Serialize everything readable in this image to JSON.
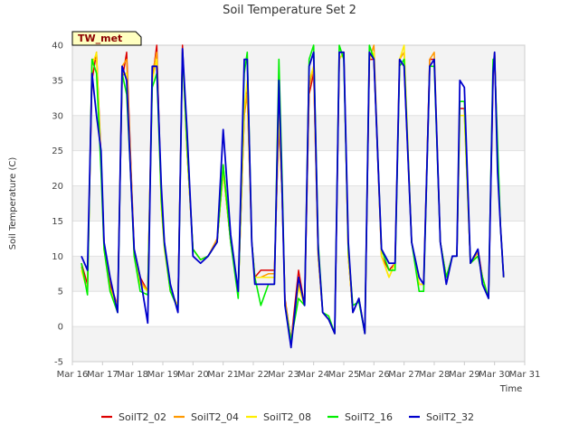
{
  "chart_data": {
    "type": "line",
    "title": "Soil Temperature Set 2",
    "xlabel": "Time",
    "ylabel": "Soil Temperature (C)",
    "ylim": [
      -5,
      40
    ],
    "y_ticks": [
      -5,
      0,
      5,
      10,
      15,
      20,
      25,
      30,
      35,
      40
    ],
    "x_ticks": [
      "Mar 16",
      "Mar 17",
      "Mar 18",
      "Mar 19",
      "Mar 20",
      "Mar 21",
      "Mar 22",
      "Mar 23",
      "Mar 24",
      "Mar 25",
      "Mar 26",
      "Mar 27",
      "Mar 28",
      "Mar 29",
      "Mar 30",
      "Mar 31"
    ],
    "xlim_days": [
      16,
      31
    ],
    "grid": "horizontal alternating bands",
    "legend_position": "bottom",
    "badge_label": "TW_met",
    "series": [
      {
        "name": "SoilT2_02",
        "color": "#dd0000",
        "stroke_width": 1.5,
        "point_days": [
          16.3,
          16.5,
          16.65,
          16.8,
          16.95,
          17.05,
          17.25,
          17.5,
          17.65,
          17.8,
          17.95,
          18.05,
          18.25,
          18.5,
          18.65,
          18.8,
          18.95,
          19.05,
          19.25,
          19.5,
          19.65,
          19.8,
          20.0,
          20.25,
          20.5,
          20.8,
          21.0,
          21.25,
          21.5,
          21.7,
          21.8,
          21.95,
          22.05,
          22.25,
          22.5,
          22.7,
          22.85,
          22.95,
          23.05,
          23.25,
          23.5,
          23.7,
          23.85,
          24.0,
          24.15,
          24.3,
          24.5,
          24.7,
          24.85,
          25.0,
          25.15,
          25.3,
          25.5,
          25.7,
          25.85,
          26.0,
          26.25,
          26.5,
          26.7,
          26.85,
          27.0,
          27.25,
          27.5,
          27.65,
          27.85,
          28.0,
          28.2,
          28.4,
          28.6,
          28.75,
          28.85,
          29.0,
          29.2,
          29.45,
          29.6,
          29.8,
          29.95,
          30.0,
          30.1,
          30.2,
          30.3
        ],
        "values": [
          9,
          6,
          35,
          39,
          24,
          12,
          6,
          3,
          35,
          39,
          22,
          11,
          7,
          5,
          35,
          40,
          18,
          12,
          5,
          3,
          40,
          25,
          11,
          9.5,
          10,
          12,
          22,
          12,
          5,
          30,
          34,
          12,
          7,
          8,
          8,
          8,
          29,
          19,
          4,
          -2,
          8,
          3,
          33,
          36,
          10,
          2,
          1,
          -1,
          38,
          39,
          10,
          2,
          4,
          -1,
          38,
          38,
          10,
          8,
          9,
          38,
          37,
          12,
          6,
          6,
          38,
          38,
          12,
          7,
          10,
          10,
          31,
          31,
          9,
          11,
          7,
          4,
          35,
          39,
          24,
          14,
          7
        ]
      },
      {
        "name": "SoilT2_04",
        "color": "#ff9900",
        "stroke_width": 1.5,
        "point_days": [
          16.3,
          16.5,
          16.65,
          16.8,
          16.95,
          17.05,
          17.25,
          17.5,
          17.65,
          17.8,
          17.95,
          18.05,
          18.25,
          18.5,
          18.65,
          18.8,
          18.95,
          19.05,
          19.25,
          19.5,
          19.65,
          19.8,
          20.0,
          20.25,
          20.5,
          20.8,
          21.0,
          21.25,
          21.5,
          21.7,
          21.8,
          21.95,
          22.05,
          22.25,
          22.5,
          22.7,
          22.85,
          22.95,
          23.05,
          23.25,
          23.5,
          23.7,
          23.85,
          24.0,
          24.15,
          24.3,
          24.5,
          24.7,
          24.85,
          25.0,
          25.15,
          25.3,
          25.5,
          25.7,
          25.85,
          26.0,
          26.25,
          26.5,
          26.7,
          26.85,
          27.0,
          27.25,
          27.5,
          27.65,
          27.85,
          28.0,
          28.2,
          28.4,
          28.6,
          28.75,
          28.85,
          29.0,
          29.2,
          29.45,
          29.6,
          29.8,
          29.95,
          30.0,
          30.1,
          30.2,
          30.3
        ],
        "values": [
          8.5,
          5,
          38,
          38,
          23,
          11.5,
          5.5,
          3,
          37,
          38,
          21,
          10.5,
          6.5,
          5,
          36,
          39,
          17,
          11.5,
          5,
          3,
          39,
          25,
          11,
          9.5,
          10,
          12.5,
          23,
          12,
          5,
          30,
          33,
          12,
          7,
          7,
          7.5,
          7.5,
          30,
          19,
          3.5,
          -2,
          6,
          3,
          34,
          37,
          10,
          2,
          1,
          -1,
          38,
          39,
          10,
          2,
          4,
          -1,
          38,
          40,
          10,
          7,
          9,
          38,
          39,
          12,
          6,
          6,
          38,
          39,
          12,
          7,
          10,
          10,
          30,
          30,
          9,
          10.5,
          7,
          4,
          36,
          39,
          24,
          14,
          7
        ]
      },
      {
        "name": "SoilT2_08",
        "color": "#ffee00",
        "stroke_width": 1.5,
        "point_days": [
          16.3,
          16.5,
          16.65,
          16.8,
          16.95,
          17.05,
          17.25,
          17.5,
          17.65,
          17.8,
          17.95,
          18.05,
          18.25,
          18.5,
          18.65,
          18.8,
          18.95,
          19.05,
          19.25,
          19.5,
          19.65,
          19.8,
          20.0,
          20.25,
          20.5,
          20.8,
          21.0,
          21.25,
          21.5,
          21.7,
          21.8,
          21.95,
          22.05,
          22.25,
          22.5,
          22.7,
          22.85,
          22.95,
          23.05,
          23.25,
          23.5,
          23.7,
          23.85,
          24.0,
          24.15,
          24.3,
          24.5,
          24.7,
          24.85,
          25.0,
          25.15,
          25.3,
          25.5,
          25.7,
          25.85,
          26.0,
          26.25,
          26.5,
          26.7,
          26.85,
          27.0,
          27.25,
          27.5,
          27.65,
          27.85,
          28.0,
          28.2,
          28.4,
          28.6,
          28.75,
          28.85,
          29.0,
          29.2,
          29.45,
          29.6,
          29.8,
          29.95,
          30.0,
          30.1,
          30.2,
          30.3
        ],
        "values": [
          8,
          5,
          37,
          39,
          23,
          11,
          5,
          3,
          36,
          36,
          21,
          10,
          6,
          5,
          35,
          38,
          17,
          11,
          5,
          3,
          39,
          25,
          11,
          9.5,
          10,
          12,
          22,
          12,
          5,
          31,
          35,
          12,
          7,
          7,
          7,
          7,
          31,
          19,
          3.5,
          -2,
          5.5,
          3,
          35,
          37,
          10,
          2,
          1,
          -1,
          38,
          39,
          10,
          2,
          4,
          -1,
          38,
          39,
          10,
          7,
          9,
          38,
          40,
          12,
          6,
          6,
          37,
          38,
          12,
          7,
          10,
          10,
          30,
          30,
          9,
          10,
          7,
          4,
          36,
          39,
          24,
          14,
          7
        ]
      },
      {
        "name": "SoilT2_16",
        "color": "#00ee00",
        "stroke_width": 1.6,
        "point_days": [
          16.3,
          16.5,
          16.65,
          16.8,
          16.95,
          17.05,
          17.25,
          17.5,
          17.65,
          17.8,
          17.95,
          18.05,
          18.25,
          18.5,
          18.65,
          18.8,
          18.95,
          19.05,
          19.25,
          19.5,
          19.65,
          19.8,
          20.0,
          20.25,
          20.5,
          20.8,
          21.0,
          21.25,
          21.5,
          21.7,
          21.8,
          21.95,
          22.05,
          22.25,
          22.5,
          22.7,
          22.85,
          22.95,
          23.05,
          23.25,
          23.5,
          23.7,
          23.85,
          24.0,
          24.15,
          24.3,
          24.5,
          24.7,
          24.85,
          25.0,
          25.15,
          25.3,
          25.5,
          25.7,
          25.85,
          26.0,
          26.25,
          26.5,
          26.7,
          26.85,
          27.0,
          27.25,
          27.5,
          27.65,
          27.85,
          28.0,
          28.2,
          28.4,
          28.6,
          28.75,
          28.85,
          29.0,
          29.2,
          29.45,
          29.6,
          29.8,
          29.95,
          30.0,
          30.1,
          30.2,
          30.3
        ],
        "values": [
          9,
          4.5,
          38,
          36,
          22,
          11,
          5,
          2,
          36,
          33,
          20,
          10,
          5,
          4.5,
          34,
          36,
          18,
          11.5,
          5,
          2.5,
          39,
          26,
          11,
          9.5,
          10,
          12,
          23,
          12,
          4,
          36,
          39,
          12,
          7,
          3,
          6,
          6,
          38,
          22,
          3,
          -2,
          4,
          3,
          38,
          40,
          12,
          2,
          1.5,
          -1,
          40,
          38,
          11,
          3,
          3.5,
          -1,
          40,
          38,
          11,
          8,
          8,
          37,
          38,
          12,
          5,
          5,
          37,
          37,
          12,
          7,
          10,
          10,
          32,
          32,
          9,
          10,
          7,
          4,
          38,
          38,
          26,
          14,
          7
        ]
      },
      {
        "name": "SoilT2_32",
        "color": "#0000cc",
        "stroke_width": 1.8,
        "point_days": [
          16.3,
          16.5,
          16.65,
          16.8,
          16.95,
          17.05,
          17.25,
          17.5,
          17.65,
          17.8,
          17.95,
          18.05,
          18.25,
          18.5,
          18.65,
          18.8,
          18.95,
          19.05,
          19.25,
          19.5,
          19.65,
          19.8,
          20.0,
          20.25,
          20.5,
          20.8,
          21.0,
          21.25,
          21.5,
          21.7,
          21.8,
          21.95,
          22.05,
          22.25,
          22.5,
          22.7,
          22.85,
          22.95,
          23.05,
          23.25,
          23.5,
          23.7,
          23.85,
          24.0,
          24.15,
          24.3,
          24.5,
          24.7,
          24.85,
          25.0,
          25.15,
          25.3,
          25.5,
          25.7,
          25.85,
          26.0,
          26.25,
          26.5,
          26.7,
          26.85,
          27.0,
          27.25,
          27.5,
          27.65,
          27.85,
          28.0,
          28.2,
          28.4,
          28.6,
          28.75,
          28.85,
          29.0,
          29.2,
          29.45,
          29.6,
          29.8,
          29.95,
          30.0,
          30.1,
          30.2,
          30.3
        ],
        "values": [
          10,
          8,
          36,
          30,
          25,
          12,
          7,
          2,
          37,
          35,
          20,
          11,
          7,
          0.5,
          37,
          37,
          20,
          12,
          6,
          2,
          39.5,
          28,
          10,
          9,
          10,
          12,
          28,
          13,
          5,
          38,
          38,
          12,
          6,
          6,
          6,
          6,
          35,
          20,
          3,
          -3,
          7,
          3,
          37,
          39,
          11,
          2,
          1,
          -1,
          39,
          39,
          12,
          2,
          4,
          -1,
          39,
          38,
          11,
          9,
          9,
          38,
          37,
          12,
          7,
          6,
          37,
          38,
          12,
          6,
          10,
          10,
          35,
          34,
          9,
          11,
          6,
          4,
          36,
          39,
          22,
          14,
          7
        ]
      }
    ]
  }
}
